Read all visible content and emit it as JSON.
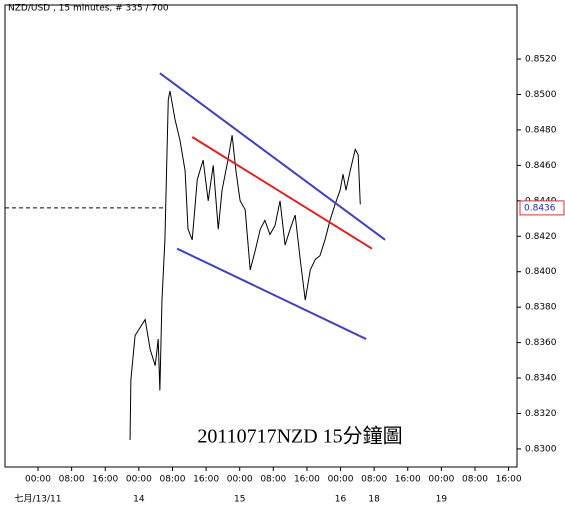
{
  "chart_data": {
    "type": "line",
    "title": "NZD/USD , 15 minutes, # 335 / 700",
    "annotation": "20110717NZD 15分鐘圖",
    "xlim": [
      -7.86,
      114
    ],
    "ylim": [
      0.82898,
      0.85505
    ],
    "x": [
      21.9,
      22.1,
      23.1,
      25.5,
      26.7,
      27.9,
      28.6,
      29.0,
      29.5,
      30.2,
      31.0,
      31.4,
      32.6,
      33.8,
      35.0,
      35.7,
      36.7,
      37.9,
      39.3,
      40.5,
      41.7,
      42.9,
      43.8,
      45.2,
      46.2,
      47.1,
      48.1,
      49.3,
      50.5,
      51.7,
      52.9,
      54.0,
      55.2,
      56.4,
      57.6,
      58.8,
      60.0,
      61.2,
      62.4,
      63.6,
      64.8,
      66.0,
      67.1,
      68.3,
      69.5,
      70.7,
      71.9,
      72.6,
      73.3,
      74.3,
      75.5,
      76.2,
      76.7
    ],
    "series": [
      {
        "color": "#000000",
        "values": [
          0.8305,
          0.8339,
          0.8364,
          0.8373,
          0.8356,
          0.8347,
          0.8362,
          0.8333,
          0.8384,
          0.8418,
          0.8497,
          0.8502,
          0.8486,
          0.8474,
          0.8457,
          0.8424,
          0.8418,
          0.8452,
          0.8463,
          0.844,
          0.846,
          0.8424,
          0.8446,
          0.8463,
          0.8477,
          0.8457,
          0.844,
          0.8435,
          0.8401,
          0.8412,
          0.8424,
          0.8429,
          0.8421,
          0.8426,
          0.844,
          0.8415,
          0.8424,
          0.8432,
          0.8407,
          0.8384,
          0.8401,
          0.8407,
          0.8409,
          0.8418,
          0.8429,
          0.8438,
          0.8446,
          0.8455,
          0.8446,
          0.8457,
          0.8469,
          0.8466,
          0.8438
        ]
      }
    ],
    "trendlines": [
      {
        "color": "#4040c0",
        "x": [
          29.0,
          82.6
        ],
        "values": [
          0.8512,
          0.8418
        ]
      },
      {
        "color": "#e02020",
        "x": [
          36.7,
          79.5
        ],
        "values": [
          0.8476,
          0.8413
        ]
      },
      {
        "color": "#4040c0",
        "x": [
          33.1,
          78.1
        ],
        "values": [
          0.8413,
          0.8362
        ]
      }
    ],
    "current_price": {
      "value": 0.8436,
      "label": "0.8436"
    },
    "yticks": [
      {
        "value": 0.83,
        "label": "0.8300"
      },
      {
        "value": 0.832,
        "label": "0.8320"
      },
      {
        "value": 0.834,
        "label": "0.8340"
      },
      {
        "value": 0.836,
        "label": "0.8360"
      },
      {
        "value": 0.838,
        "label": "0.8380"
      },
      {
        "value": 0.84,
        "label": "0.8400"
      },
      {
        "value": 0.842,
        "label": "0.8420"
      },
      {
        "value": 0.844,
        "label": "0.8440"
      },
      {
        "value": 0.846,
        "label": "0.8460"
      },
      {
        "value": 0.848,
        "label": "0.8480"
      },
      {
        "value": 0.85,
        "label": "0.8500"
      },
      {
        "value": 0.852,
        "label": "0.8520"
      }
    ],
    "xticks": [
      {
        "value": 0,
        "label": "00:00"
      },
      {
        "value": 8,
        "label": "08:00"
      },
      {
        "value": 16,
        "label": "16:00"
      },
      {
        "value": 24,
        "label": "00:00"
      },
      {
        "value": 32,
        "label": "08:00"
      },
      {
        "value": 40,
        "label": "16:00"
      },
      {
        "value": 48,
        "label": "00:00"
      },
      {
        "value": 56,
        "label": "08:00"
      },
      {
        "value": 64,
        "label": "16:00"
      },
      {
        "value": 72,
        "label": "00:00"
      },
      {
        "value": 80,
        "label": "08:00"
      },
      {
        "value": 88,
        "label": "16:00"
      },
      {
        "value": 96,
        "label": "00:00"
      },
      {
        "value": 104,
        "label": "08:00"
      },
      {
        "value": 112,
        "label": "16:00"
      }
    ],
    "date_labels": [
      {
        "value": 0,
        "label": "七月/13/11"
      },
      {
        "value": 24,
        "label": "14"
      },
      {
        "value": 48,
        "label": "15"
      },
      {
        "value": 72,
        "label": "16"
      },
      {
        "value": 80,
        "label": "18"
      },
      {
        "value": 96,
        "label": "19"
      }
    ]
  }
}
